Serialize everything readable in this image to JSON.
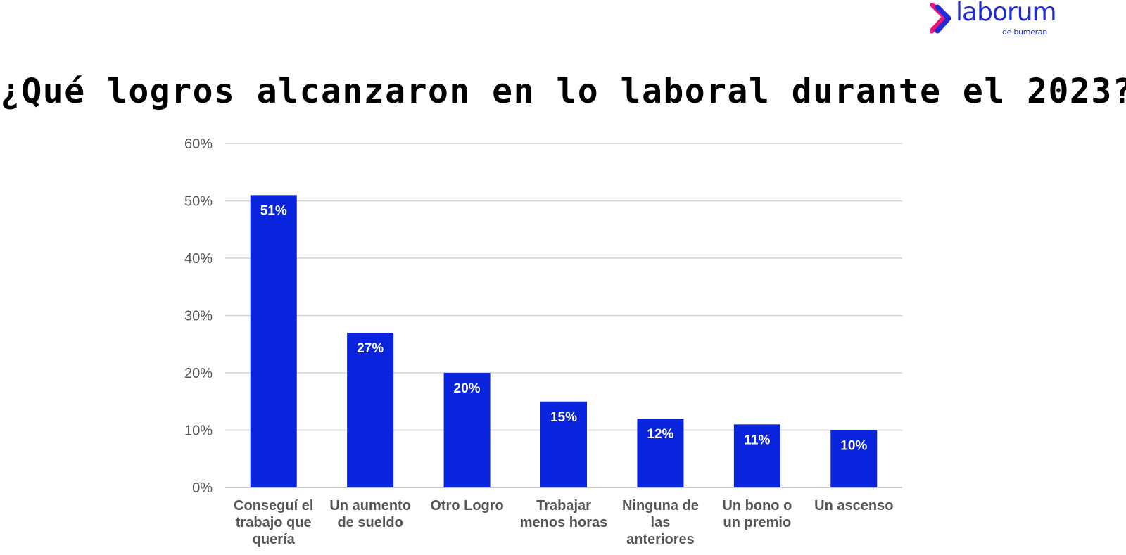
{
  "logo": {
    "word": "laborum",
    "sub": "de bumeran",
    "colors": {
      "primary": "#1f2bd6",
      "accent": "#e8157a"
    }
  },
  "chart_data": {
    "type": "bar",
    "title": "¿Qué logros alcanzaron en lo laboral durante el 2023?",
    "categories": [
      [
        "Conseguí el",
        "trabajo que",
        "quería"
      ],
      [
        "Un aumento",
        "de sueldo"
      ],
      [
        "Otro Logro"
      ],
      [
        "Trabajar",
        "menos horas"
      ],
      [
        "Ninguna de",
        "las",
        "anteriores"
      ],
      [
        "Un bono o",
        "un premio"
      ],
      [
        "Un ascenso"
      ]
    ],
    "values": [
      51,
      27,
      20,
      15,
      12,
      11,
      10
    ],
    "value_labels": [
      "51%",
      "27%",
      "20%",
      "15%",
      "12%",
      "11%",
      "10%"
    ],
    "ylim": [
      0,
      60
    ],
    "yticks": [
      0,
      10,
      20,
      30,
      40,
      50,
      60
    ],
    "ytick_labels": [
      "0%",
      "10%",
      "20%",
      "30%",
      "40%",
      "50%",
      "60%"
    ],
    "xlabel": "",
    "ylabel": "",
    "grid": true,
    "legend": "none",
    "bar_color": "#0a24dd",
    "grid_color": "#d3d3d3"
  }
}
